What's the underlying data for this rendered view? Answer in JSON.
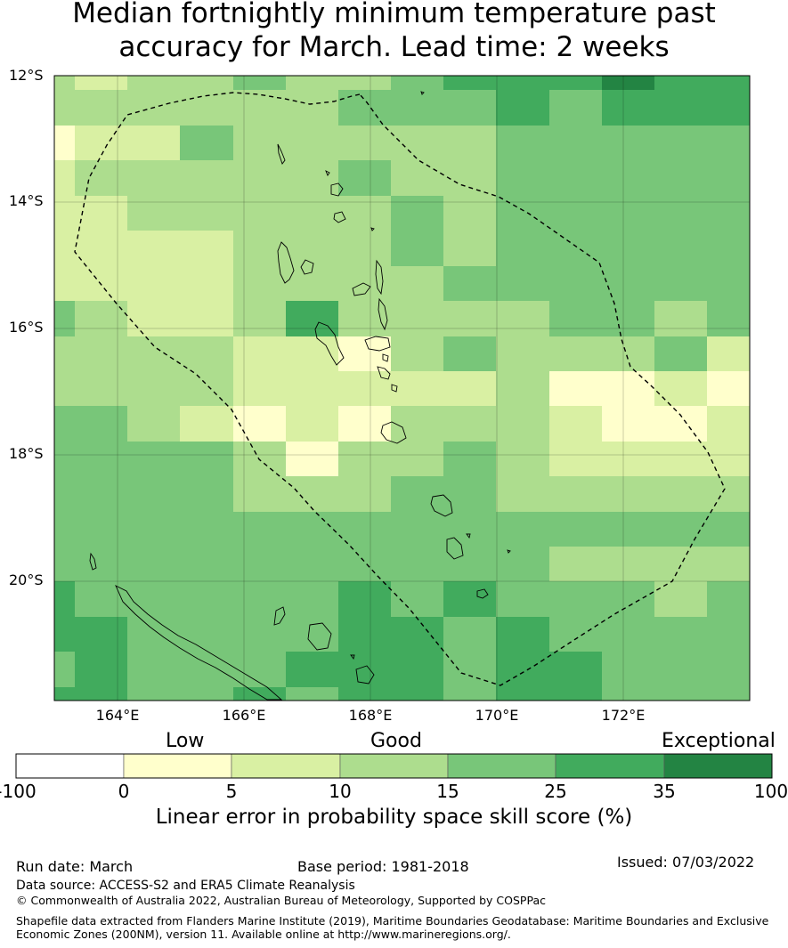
{
  "title": {
    "line1": "Median fortnightly minimum temperature past",
    "line2": "accuracy for March. Lead time: 2 weeks"
  },
  "map": {
    "lat_labels": [
      "12°S",
      "14°S",
      "16°S",
      "18°S",
      "20°S"
    ],
    "lon_labels": [
      "164°E",
      "166°E",
      "168°E",
      "170°E",
      "172°E"
    ],
    "lon_range": [
      163,
      174
    ],
    "lat_range": [
      -21.9,
      -12
    ]
  },
  "legend": {
    "categories": [
      "Low",
      "Good",
      "Exceptional"
    ],
    "ticks": [
      "-100",
      "0",
      "5",
      "10",
      "15",
      "25",
      "35",
      "100"
    ],
    "colors": [
      "#ffffff",
      "#ffffcc",
      "#d9f0a3",
      "#addd8e",
      "#78c679",
      "#41ab5d",
      "#238443"
    ],
    "title": "Linear error in probability space skill score (%)"
  },
  "footer": {
    "run_date": "Run date: March",
    "base_period": "Base period: 1981-2018",
    "issued": "Issued: 07/03/2022",
    "data_source": "Data source: ACCESS-S2 and ERA5 Climate Reanalysis",
    "copyright": "© Commonwealth of Australia 2022, Australian Bureau of Meteorology, Supported by COSPPac",
    "shapefile_line1": "Shapefile data extracted from Flanders Marine Institute (2019), Maritime Boundaries Geodatabase: Maritime Boundaries and Exclusive",
    "shapefile_line2": "Economic Zones (200NM), version 11. Available online at http://www.marineregions.org/."
  }
}
